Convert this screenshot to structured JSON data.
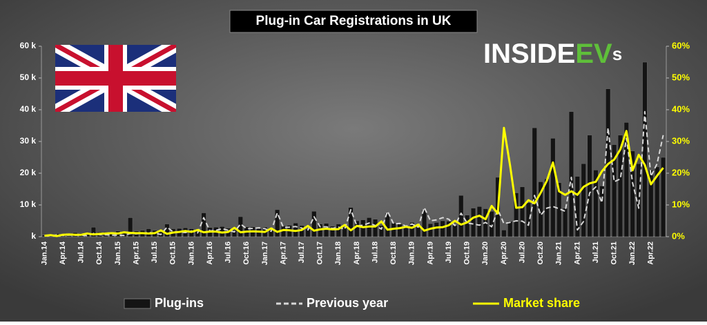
{
  "chart_data": {
    "type": "bar",
    "title": "Plug-in Car Registrations in UK",
    "brand": {
      "primary": "INSIDE",
      "accent": "EV",
      "suffix": "s"
    },
    "categories": [
      "Jan.14",
      null,
      null,
      "Apr.14",
      null,
      null,
      "Jul.14",
      null,
      null,
      "Oct.14",
      null,
      null,
      "Jan.15",
      null,
      null,
      "Apr.15",
      null,
      null,
      "Jul.15",
      null,
      null,
      "Oct.15",
      null,
      null,
      "Jan.16",
      null,
      null,
      "Apr.16",
      null,
      null,
      "Jul.16",
      null,
      null,
      "Oct.16",
      null,
      null,
      "Jan.17",
      null,
      null,
      "Apr.17",
      null,
      null,
      "Jul.17",
      null,
      null,
      "Oct.17",
      null,
      null,
      "Jan.18",
      null,
      null,
      "Apr.18",
      null,
      null,
      "Jul.18",
      null,
      null,
      "Oct.18",
      null,
      null,
      "Jan.19",
      null,
      null,
      "Apr.19",
      null,
      null,
      "Jul.19",
      null,
      null,
      "Oct.19",
      null,
      null,
      "Jan.20",
      null,
      null,
      "Apr.20",
      null,
      null,
      "Jul.20",
      null,
      null,
      "Oct.20",
      null,
      null,
      "Jan.21",
      null,
      null,
      "Apr.21",
      null,
      null,
      "Jul.21",
      null,
      null,
      "Oct.21",
      null,
      null,
      "Jan.22",
      null,
      null,
      "Apr.22",
      null,
      null
    ],
    "series": [
      {
        "name": "Plug-ins",
        "kind": "bar",
        "color": "#141414",
        "values": [
          500,
          400,
          1000,
          900,
          1100,
          1300,
          1100,
          700,
          3000,
          1500,
          1500,
          1300,
          1800,
          1200,
          6000,
          1800,
          2000,
          2500,
          2000,
          1500,
          4000,
          2500,
          2600,
          2800,
          2500,
          1700,
          7500,
          2900,
          3000,
          3200,
          2700,
          2100,
          6300,
          3100,
          3100,
          2600,
          3000,
          2300,
          8500,
          3400,
          3600,
          4300,
          3500,
          2400,
          8000,
          4000,
          4200,
          3300,
          4000,
          3000,
          9200,
          5000,
          5300,
          6000,
          5500,
          3500,
          7400,
          4300,
          4000,
          3600,
          4500,
          3100,
          8500,
          4100,
          4500,
          5000,
          4900,
          3600,
          13000,
          6800,
          9000,
          9500,
          8800,
          8000,
          18700,
          2100,
          4800,
          13800,
          15700,
          10700,
          34300,
          17300,
          18200,
          31000,
          17000,
          9000,
          39400,
          19000,
          23000,
          32000,
          21000,
          16000,
          46600,
          29000,
          32000,
          36000,
          27000,
          23000,
          55000,
          21000,
          22000,
          25000
        ]
      },
      {
        "name": "Previous year",
        "kind": "line",
        "dash": true,
        "color": "#d8d8d8",
        "values": [
          300,
          250,
          600,
          400,
          500,
          450,
          500,
          300,
          1000,
          600,
          600,
          500,
          500,
          400,
          1000,
          900,
          1100,
          1300,
          1100,
          700,
          3000,
          1500,
          1500,
          1300,
          1800,
          1200,
          6000,
          1800,
          2000,
          2500,
          2000,
          1500,
          4000,
          2500,
          2600,
          2800,
          2500,
          1700,
          7500,
          2900,
          3000,
          3200,
          2700,
          2100,
          6300,
          3100,
          3100,
          2600,
          3000,
          2300,
          8500,
          3400,
          3600,
          4300,
          3500,
          2400,
          8000,
          4000,
          4200,
          3300,
          4000,
          3000,
          9200,
          5000,
          5300,
          6000,
          5500,
          3500,
          7400,
          4300,
          4000,
          3600,
          4500,
          3100,
          8500,
          4100,
          4500,
          5000,
          4900,
          3600,
          13000,
          6800,
          9000,
          9500,
          8800,
          8000,
          18700,
          2100,
          4800,
          13800,
          15700,
          10700,
          34300,
          17300,
          18200,
          31000,
          17000,
          9000,
          39400,
          19000,
          23000,
          32000
        ]
      },
      {
        "name": "Market share",
        "kind": "line",
        "axis": "y2",
        "color": "#ffff00",
        "values": [
          0.3,
          0.5,
          0.2,
          0.6,
          0.7,
          0.6,
          0.6,
          1.0,
          0.7,
          0.9,
          1.0,
          1.1,
          1.0,
          1.4,
          1.2,
          1.1,
          1.1,
          1.0,
          1.1,
          2.0,
          0.9,
          1.3,
          1.5,
          1.8,
          1.5,
          2.1,
          1.4,
          1.6,
          1.6,
          1.3,
          1.5,
          2.8,
          1.4,
          1.6,
          1.7,
          1.6,
          1.5,
          2.6,
          1.5,
          2.1,
          2.0,
          1.8,
          2.1,
          3.4,
          1.9,
          2.3,
          2.5,
          2.3,
          2.4,
          3.7,
          2.0,
          3.4,
          3.0,
          3.2,
          3.2,
          4.8,
          2.2,
          2.5,
          2.7,
          3.1,
          2.8,
          3.8,
          1.9,
          2.5,
          2.9,
          3.0,
          3.6,
          5.0,
          3.8,
          4.5,
          6.0,
          6.6,
          5.5,
          9.7,
          7.3,
          34.3,
          22.4,
          9.1,
          9.3,
          11.5,
          10.5,
          13.8,
          17.6,
          23.4,
          14.3,
          13.2,
          14.3,
          13.2,
          15.7,
          16.8,
          17.3,
          20.6,
          22.9,
          24.3,
          27.5,
          33.3,
          20.9,
          25.8,
          22.6,
          16.5,
          19.2,
          21.7
        ]
      }
    ],
    "ylim": [
      0,
      60000
    ],
    "yticks": [
      {
        "value": 0,
        "label": "k"
      },
      {
        "value": 10000,
        "label": "10 k"
      },
      {
        "value": 20000,
        "label": "20 k"
      },
      {
        "value": 30000,
        "label": "30 k"
      },
      {
        "value": 40000,
        "label": "40 k"
      },
      {
        "value": 50000,
        "label": "50 k"
      },
      {
        "value": 60000,
        "label": "60 k"
      }
    ],
    "y2lim": [
      0,
      60
    ],
    "y2ticks": [
      {
        "value": 0,
        "label": "0%"
      },
      {
        "value": 10,
        "label": "10%"
      },
      {
        "value": 20,
        "label": "20%"
      },
      {
        "value": 30,
        "label": "30%"
      },
      {
        "value": 40,
        "label": "40%"
      },
      {
        "value": 50,
        "label": "50%"
      },
      {
        "value": 60,
        "label": "60%"
      }
    ],
    "grid": false,
    "legend": "bottom"
  }
}
